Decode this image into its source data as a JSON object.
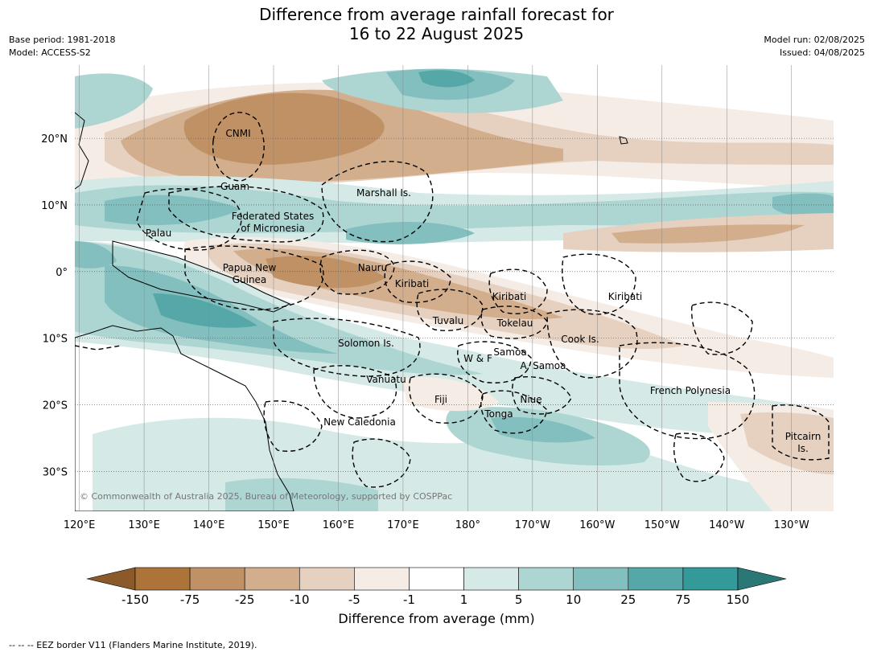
{
  "header": {
    "title_line1": "Difference from average rainfall forecast for",
    "title_line2": "16 to 22 August 2025",
    "base_period": "Base period: 1981-2018",
    "model": "Model: ACCESS-S2",
    "model_run": "Model run: 02/08/2025",
    "issued": "Issued: 04/08/2025"
  },
  "map": {
    "lon_labels": [
      "120°E",
      "130°E",
      "140°E",
      "150°E",
      "160°E",
      "170°E",
      "180°",
      "170°W",
      "160°W",
      "150°W",
      "140°W",
      "130°W"
    ],
    "lat_labels": [
      "20°N",
      "10°N",
      "0°",
      "10°S",
      "20°S",
      "30°S"
    ],
    "copyright": "© Commonwealth of Australia 2025, Bureau of Meteorology, supported by COSPPac",
    "regions": [
      "CNMI",
      "Guam",
      "Marshall Is.",
      "Federated States",
      "of Micronesia",
      "Palau",
      "Papua New",
      "Guinea",
      "Nauru",
      "Kiribati",
      "Kiribati",
      "Kiribati",
      "Tuvalu",
      "Tokelau",
      "Cook Is.",
      "Solomon Is.",
      "W & F",
      "Samoa",
      "A. Samoa",
      "Vanuatu",
      "Fiji",
      "Niue",
      "Tonga",
      "French Polynesia",
      "New Caledonia",
      "Pitcairn",
      "Is."
    ]
  },
  "colorbar": {
    "ticks": [
      "-150",
      "-75",
      "-25",
      "-10",
      "-5",
      "-1",
      "1",
      "5",
      "10",
      "25",
      "75",
      "150"
    ],
    "colors": [
      "#8b5a2b",
      "#ac7439",
      "#c09165",
      "#d3ae8d",
      "#e6d1c0",
      "#f4ece5",
      "#ffffff",
      "#d5e9e7",
      "#add6d3",
      "#83bfbf",
      "#56a8a8",
      "#349999",
      "#2a7776"
    ],
    "label": "Difference from average (mm)"
  },
  "footer": {
    "legend_text": "--  --  -- EEZ border V11 (Flanders Marine Institute, 2019)."
  }
}
